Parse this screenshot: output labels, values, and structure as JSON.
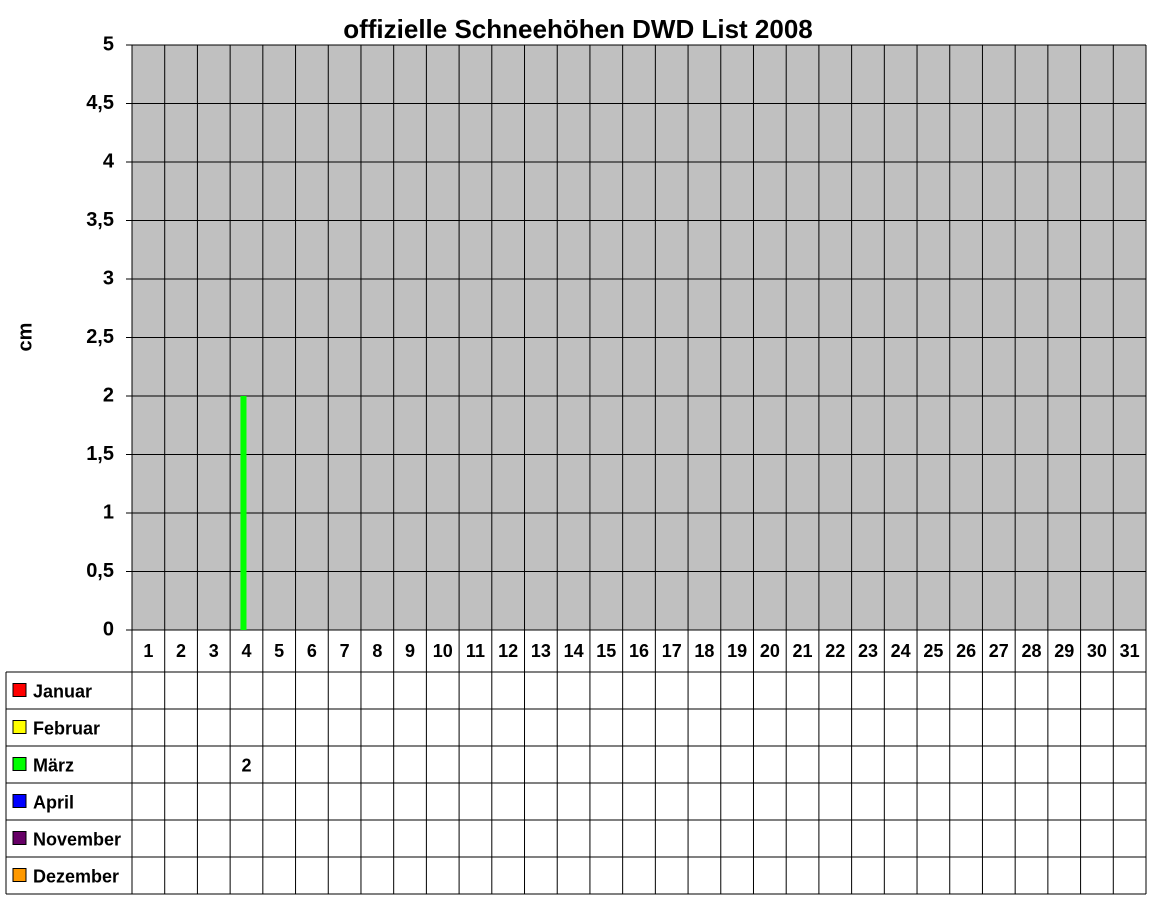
{
  "chart_data": {
    "type": "bar",
    "title": "offizielle Schneehöhen DWD List 2008",
    "y_label": "cm",
    "categories": [
      "1",
      "2",
      "3",
      "4",
      "5",
      "6",
      "7",
      "8",
      "9",
      "10",
      "11",
      "12",
      "13",
      "14",
      "15",
      "16",
      "17",
      "18",
      "19",
      "20",
      "21",
      "22",
      "23",
      "24",
      "25",
      "26",
      "27",
      "28",
      "29",
      "30",
      "31"
    ],
    "series": [
      {
        "name": "Januar",
        "color": "#ff0000",
        "values": [
          null,
          null,
          null,
          null,
          null,
          null,
          null,
          null,
          null,
          null,
          null,
          null,
          null,
          null,
          null,
          null,
          null,
          null,
          null,
          null,
          null,
          null,
          null,
          null,
          null,
          null,
          null,
          null,
          null,
          null,
          null
        ]
      },
      {
        "name": "Februar",
        "color": "#ffff00",
        "values": [
          null,
          null,
          null,
          null,
          null,
          null,
          null,
          null,
          null,
          null,
          null,
          null,
          null,
          null,
          null,
          null,
          null,
          null,
          null,
          null,
          null,
          null,
          null,
          null,
          null,
          null,
          null,
          null,
          null,
          null,
          null
        ]
      },
      {
        "name": "März",
        "color": "#00ff00",
        "values": [
          null,
          null,
          null,
          2,
          null,
          null,
          null,
          null,
          null,
          null,
          null,
          null,
          null,
          null,
          null,
          null,
          null,
          null,
          null,
          null,
          null,
          null,
          null,
          null,
          null,
          null,
          null,
          null,
          null,
          null,
          null
        ]
      },
      {
        "name": "April",
        "color": "#0000ff",
        "values": [
          null,
          null,
          null,
          null,
          null,
          null,
          null,
          null,
          null,
          null,
          null,
          null,
          null,
          null,
          null,
          null,
          null,
          null,
          null,
          null,
          null,
          null,
          null,
          null,
          null,
          null,
          null,
          null,
          null,
          null,
          null
        ]
      },
      {
        "name": "November",
        "color": "#660066",
        "values": [
          null,
          null,
          null,
          null,
          null,
          null,
          null,
          null,
          null,
          null,
          null,
          null,
          null,
          null,
          null,
          null,
          null,
          null,
          null,
          null,
          null,
          null,
          null,
          null,
          null,
          null,
          null,
          null,
          null,
          null,
          null
        ]
      },
      {
        "name": "Dezember",
        "color": "#ff9900",
        "values": [
          null,
          null,
          null,
          null,
          null,
          null,
          null,
          null,
          null,
          null,
          null,
          null,
          null,
          null,
          null,
          null,
          null,
          null,
          null,
          null,
          null,
          null,
          null,
          null,
          null,
          null,
          null,
          null,
          null,
          null,
          null
        ]
      }
    ],
    "ylim": [
      0,
      5
    ],
    "yticks": [
      0,
      {
        "value": 0.5,
        "label": "0,5"
      },
      1,
      {
        "value": 1.5,
        "label": "1,5"
      },
      2,
      {
        "value": 2.5,
        "label": "2,5"
      },
      3,
      {
        "value": 3.5,
        "label": "3,5"
      },
      4,
      {
        "value": 4.5,
        "label": "4,5"
      },
      5
    ],
    "grid": true,
    "plot_color": "#c0c0c0"
  }
}
